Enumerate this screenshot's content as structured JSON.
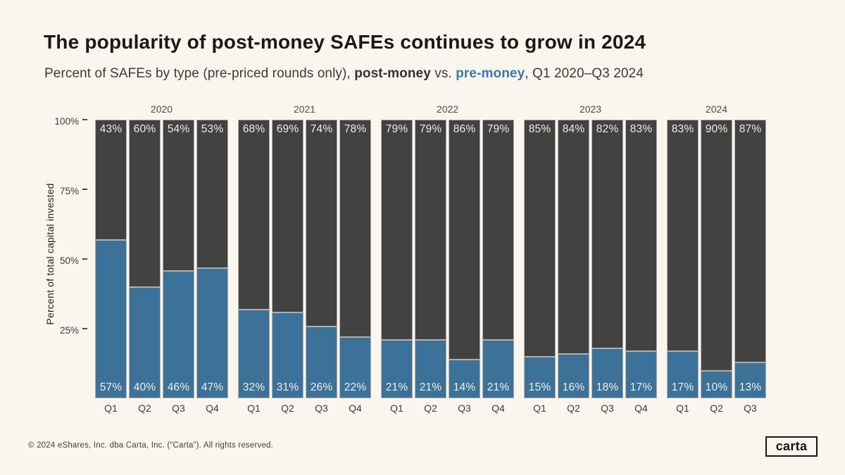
{
  "colors": {
    "background": "#faf6ee",
    "post_money_bar": "#424242",
    "pre_money_bar": "#3c7299",
    "accent_text_blue": "#3e76ab",
    "bar_outline": "#b3afa8",
    "value_label_text": "#f2eee5"
  },
  "header": {
    "title": "The popularity of post-money SAFEs continues to grow in 2024",
    "subtitle": {
      "prefix": "Percent of SAFEs by type (pre-priced rounds only), ",
      "post_label": "post-money",
      "middle": " vs. ",
      "pre_label": "pre-money",
      "suffix": ", Q1 2020–Q3 2024"
    }
  },
  "chart_data": {
    "type": "bar",
    "stacked": true,
    "title": "The popularity of post-money SAFEs continues to grow in 2024",
    "subtitle": "Percent of SAFEs by type (pre-priced rounds only), post-money vs. pre-money, Q1 2020–Q3 2024",
    "xlabel": "",
    "ylabel": "Percent of total capital invested",
    "ylim": [
      0,
      100
    ],
    "grid": false,
    "legend": "inline-in-subtitle",
    "yticks": [
      {
        "label": "100%",
        "value": 100
      },
      {
        "label": "75%",
        "value": 75
      },
      {
        "label": "50%",
        "value": 50
      },
      {
        "label": "25%",
        "value": 25
      }
    ],
    "series": [
      {
        "name": "post-money",
        "color": "#424242"
      },
      {
        "name": "pre-money",
        "color": "#3c7299"
      }
    ],
    "groups": [
      {
        "year": "2020",
        "quarters": [
          "Q1",
          "Q2",
          "Q3",
          "Q4"
        ],
        "post_money": [
          43,
          60,
          54,
          53
        ],
        "pre_money": [
          57,
          40,
          46,
          47
        ]
      },
      {
        "year": "2021",
        "quarters": [
          "Q1",
          "Q2",
          "Q3",
          "Q4"
        ],
        "post_money": [
          68,
          69,
          74,
          78
        ],
        "pre_money": [
          32,
          31,
          26,
          22
        ]
      },
      {
        "year": "2022",
        "quarters": [
          "Q1",
          "Q2",
          "Q3",
          "Q4"
        ],
        "post_money": [
          79,
          79,
          86,
          79
        ],
        "pre_money": [
          21,
          21,
          14,
          21
        ]
      },
      {
        "year": "2023",
        "quarters": [
          "Q1",
          "Q2",
          "Q3",
          "Q4"
        ],
        "post_money": [
          85,
          84,
          82,
          83
        ],
        "pre_money": [
          15,
          16,
          18,
          17
        ]
      },
      {
        "year": "2024",
        "quarters": [
          "Q1",
          "Q2",
          "Q3"
        ],
        "post_money": [
          83,
          90,
          87
        ],
        "pre_money": [
          17,
          10,
          13
        ]
      }
    ]
  },
  "footer": {
    "copyright": "© 2024 eShares, Inc. dba Carta, Inc. (“Carta”). All rights reserved.",
    "logo_text": "carta"
  }
}
